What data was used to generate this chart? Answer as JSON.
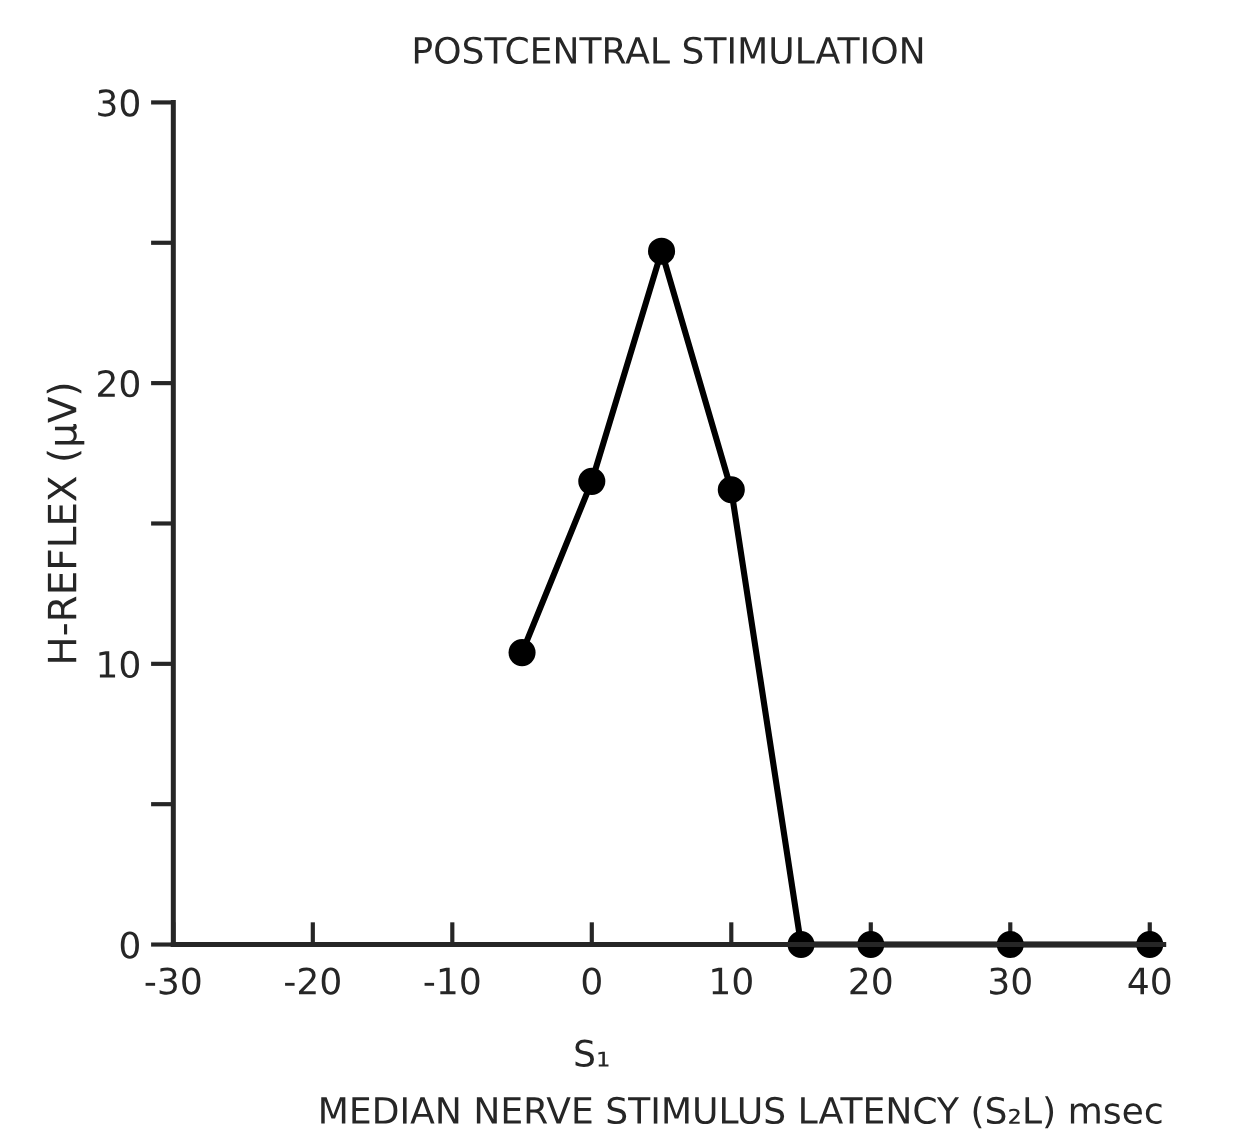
{
  "chart_data": {
    "type": "line",
    "title": "POSTCENTRAL STIMULATION",
    "xlabel": "MEDIAN NERVE STIMULUS LATENCY (S₂L) msec",
    "ylabel": "H-REFLEX (μV)",
    "annotations": [
      "S₁"
    ],
    "x": [
      -5,
      0,
      5,
      10,
      15,
      20,
      30,
      40
    ],
    "series": [
      {
        "color": "#000000",
        "values": [
          10.4,
          16.5,
          24.7,
          16.2,
          0,
          0,
          0,
          0
        ]
      }
    ],
    "xlim": [
      -30,
      41
    ],
    "xticks": [
      -30,
      -20,
      -10,
      0,
      10,
      20,
      30,
      40
    ],
    "ylim": [
      0,
      30
    ],
    "yticks": [
      0,
      {
        "value": 5,
        "label": null
      },
      10,
      {
        "value": 15,
        "label": null
      },
      20,
      {
        "value": 25,
        "label": null
      },
      30
    ],
    "marker": "circle",
    "line_style": "solid",
    "grid": false,
    "legend": false
  }
}
